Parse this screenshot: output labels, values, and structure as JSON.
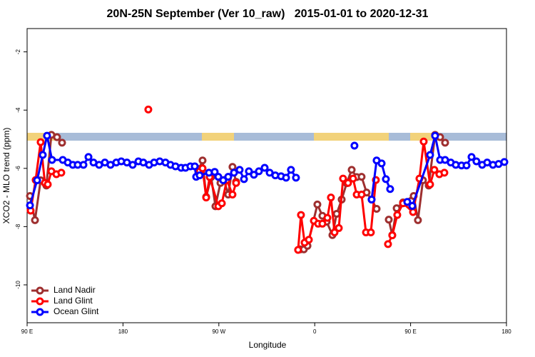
{
  "chart_data": {
    "type": "line",
    "title": "20N-25N September (Ver 10_raw)   2015-01-01 to 2020-12-31",
    "x_label": "Longitude",
    "y_label": "XCO2 - MLO trend (ppm)",
    "xlim": [
      90,
      540
    ],
    "xticks": [
      {
        "value": 90,
        "label": "90 E"
      },
      180,
      {
        "value": 270,
        "label": "90 W"
      },
      {
        "value": 360,
        "label": "0"
      },
      {
        "value": 450,
        "label": "90 E"
      },
      {
        "value": 540,
        "label": "180"
      }
    ],
    "ylim": [
      -11.3,
      -1.2
    ],
    "yticks": [
      -2,
      -4,
      -6,
      -8,
      -10
    ],
    "legend": "bottom-left",
    "series": [
      {
        "name": "Land Nadir",
        "color": "#9e2f2f",
        "x": [
          92.7,
          97.4,
          102.7,
          108.1,
          112.8,
          118.1,
          122.8,
          null,
          251.4,
          254.7,
          258.1,
          262.8,
          266.8,
          271.5,
          274.8,
          278.8,
          282.8,
          286.2,
          null,
          346.5,
          349.8,
          353.2,
          362.5,
          367.2,
          371.2,
          376.6,
          380.6,
          385.3,
          390.0,
          394.7,
          399.4,
          404.0,
          408.7,
          413.4,
          418.1,
          null,
          429.5,
          432.8,
          436.9,
          442.9,
          452.9,
          456.9,
          461.6,
          467.0,
          473.0,
          477.7,
          482.4
        ],
        "values": [
          -6.95,
          -7.78,
          -6.41,
          -6.59,
          -4.85,
          -4.93,
          -5.12,
          null,
          -6.02,
          -5.73,
          -6.98,
          -6.3,
          -7.3,
          -6.5,
          -6.4,
          -6.9,
          -5.95,
          -6.46,
          null,
          -8.78,
          -8.78,
          -8.66,
          -7.24,
          -7.63,
          -7.83,
          -8.29,
          -7.56,
          -7.07,
          -6.51,
          -6.05,
          -6.3,
          -6.29,
          -6.83,
          -7.07,
          -7.39,
          null,
          -7.76,
          -8.29,
          -7.37,
          -7.17,
          -6.95,
          -7.78,
          -6.41,
          -6.59,
          -4.85,
          -4.93,
          -5.12
        ]
      },
      {
        "name": "Land Glint",
        "color": "#ff0000",
        "x": [
          93.3,
          98.0,
          102.7,
          106.7,
          109.4,
          112.8,
          117.5,
          122.1,
          null,
          203.8,
          null,
          252.0,
          254.7,
          258.1,
          261.4,
          269.5,
          272.8,
          277.5,
          282.8,
          286.2,
          null,
          344.4,
          347.1,
          350.5,
          354.5,
          359.2,
          363.2,
          367.2,
          371.9,
          375.2,
          378.6,
          382.6,
          386.6,
          391.3,
          396.0,
          399.4,
          404.0,
          408.1,
          412.7,
          417.4,
          null,
          428.8,
          432.8,
          437.5,
          442.9,
          452.3,
          458.3,
          462.3,
          468.3,
          472.3,
          477.0,
          481.7
        ],
        "values": [
          -7.45,
          -6.4,
          -5.1,
          -6.5,
          -6.55,
          -6.1,
          -6.2,
          -6.15,
          null,
          -3.98,
          null,
          -6.1,
          -6.0,
          -7.0,
          -6.3,
          -7.3,
          -7.2,
          -6.4,
          -6.9,
          -6.5,
          null,
          -8.8,
          -7.6,
          -8.55,
          -8.45,
          -7.8,
          -7.9,
          -7.9,
          -7.7,
          -7.0,
          -8.2,
          -8.05,
          -6.35,
          -6.5,
          -6.35,
          -6.9,
          -6.9,
          -8.2,
          -8.2,
          -6.4,
          null,
          -8.6,
          -8.3,
          -7.6,
          -7.2,
          -7.5,
          -6.35,
          -5.08,
          -6.55,
          -6.05,
          -6.2,
          -6.15
        ]
      },
      {
        "name": "Ocean Glint",
        "color": "#0000ff",
        "x": [
          92.7,
          99.4,
          104.7,
          108.7,
          113.4,
          123.5,
          128.2,
          132.9,
          137.5,
          142.9,
          147.6,
          152.3,
          157.6,
          163.0,
          168.3,
          173.7,
          178.4,
          183.7,
          189.1,
          194.5,
          199.1,
          204.5,
          209.2,
          214.5,
          219.9,
          224.6,
          229.3,
          234.6,
          238.7,
          243.3,
          247.4,
          248.7,
          252.0,
          260.7,
          266.1,
          269.5,
          274.1,
          278.8,
          284.2,
          289.5,
          293.6,
          298.2,
          302.9,
          307.6,
          313.0,
          317.7,
          323.0,
          328.4,
          333.1,
          337.7,
          342.4,
          null,
          397.3,
          null,
          413.4,
          418.1,
          422.8,
          426.8,
          430.8,
          null,
          446.9,
          451.6,
          468.3,
          473.0,
          477.7,
          482.4,
          487.7,
          492.4,
          497.8,
          502.5,
          507.2,
          511.8,
          517.2,
          521.9,
          527.3,
          532.6,
          538.0
        ],
        "values": [
          -7.27,
          -6.41,
          -5.54,
          -4.88,
          -5.71,
          -5.71,
          -5.8,
          -5.88,
          -5.88,
          -5.88,
          -5.61,
          -5.8,
          -5.88,
          -5.8,
          -5.88,
          -5.8,
          -5.76,
          -5.8,
          -5.88,
          -5.76,
          -5.8,
          -5.88,
          -5.8,
          -5.76,
          -5.8,
          -5.88,
          -5.93,
          -5.98,
          -5.98,
          -5.93,
          -5.93,
          -6.29,
          -6.24,
          -6.15,
          -6.12,
          -6.29,
          -6.41,
          -6.29,
          -6.15,
          -6.05,
          -6.37,
          -6.1,
          -6.22,
          -6.1,
          -5.98,
          -6.15,
          -6.24,
          -6.27,
          -6.32,
          -6.05,
          -6.32,
          null,
          -5.22,
          null,
          -7.07,
          -5.73,
          -5.83,
          -6.37,
          -6.71,
          null,
          -7.15,
          -7.29,
          -5.54,
          -4.88,
          -5.71,
          -5.71,
          -5.8,
          -5.88,
          -5.9,
          -5.9,
          -5.61,
          -5.76,
          -5.88,
          -5.8,
          -5.88,
          -5.85,
          -5.78
        ]
      }
    ]
  }
}
